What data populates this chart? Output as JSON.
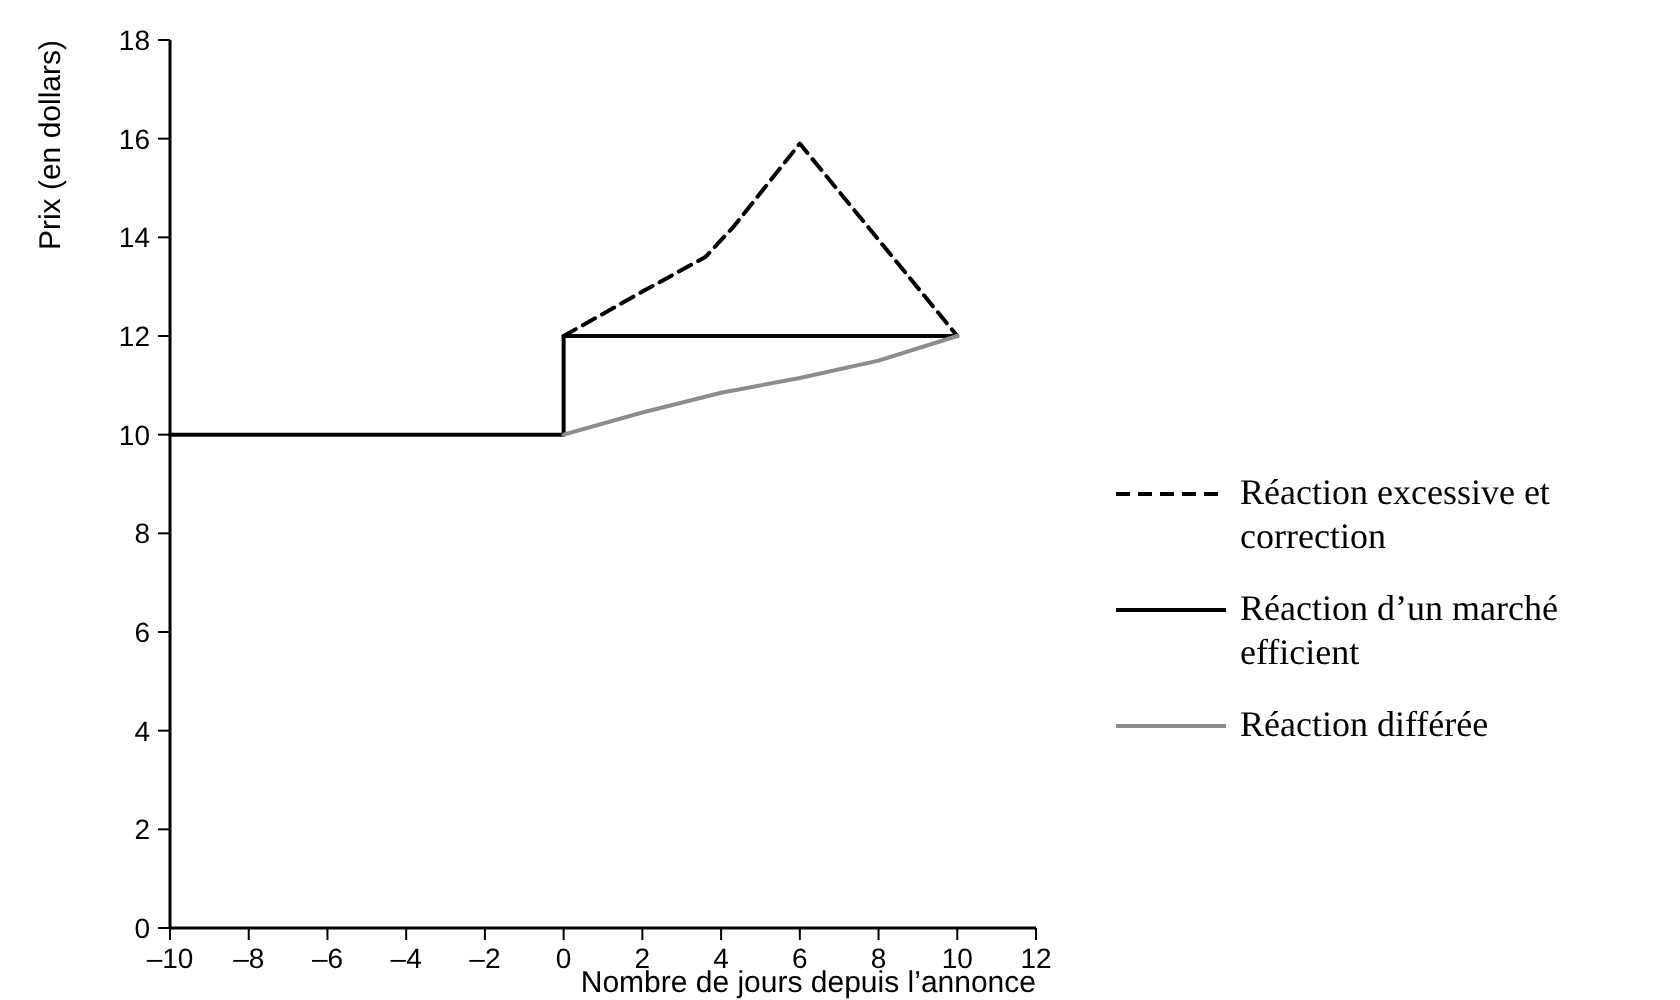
{
  "chart_data": {
    "type": "line",
    "xlabel": "Nombre de jours depuis l’annonce",
    "ylabel": "Prix (en dollars)",
    "xlim": [
      -10,
      12
    ],
    "xticks": [
      {
        "value": -10,
        "label": "–10"
      },
      {
        "value": -8,
        "label": "–8"
      },
      {
        "value": -6,
        "label": "–6"
      },
      {
        "value": -4,
        "label": "–4"
      },
      {
        "value": -2,
        "label": "–2"
      },
      0,
      2,
      4,
      6,
      8,
      10,
      12
    ],
    "ylim": [
      0,
      18
    ],
    "yticks": [
      0,
      2,
      4,
      6,
      8,
      10,
      12,
      14,
      16,
      18
    ],
    "grid": false,
    "legend": "right",
    "marker": "none",
    "series": [
      {
        "name": "Réaction excessive et correction",
        "color": "#000000",
        "line_style": "dashed",
        "x": [
          0,
          2,
          3.6,
          4.3,
          6,
          10
        ],
        "values": [
          12,
          12.9,
          13.6,
          14.2,
          15.9,
          12
        ]
      },
      {
        "name": "Réaction d’un marché efficient",
        "color": "#000000",
        "line_style": "solid",
        "x": [
          -10,
          0,
          0,
          10
        ],
        "values": [
          10,
          10,
          12,
          12
        ]
      },
      {
        "name": "Réaction différée",
        "color": "#8c8c8c",
        "line_style": "solid",
        "x": [
          0,
          2,
          4,
          6,
          8,
          10
        ],
        "values": [
          10,
          10.45,
          10.85,
          11.15,
          11.5,
          12
        ]
      }
    ]
  }
}
